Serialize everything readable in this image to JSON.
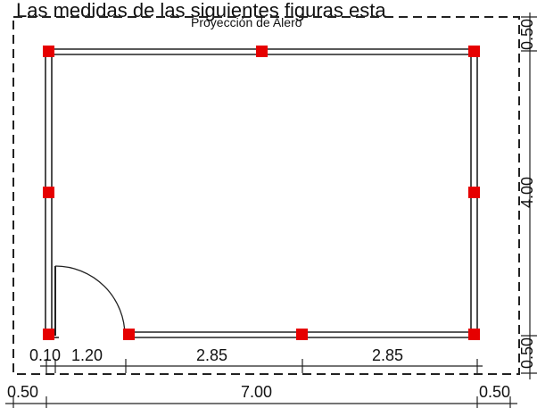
{
  "header_text": "Las medidas de las siguientes figuras esta",
  "roof_label": "Proyección de Alero",
  "dimensions": {
    "bottom_inner": [
      "0.10",
      "1.20",
      "2.85",
      "2.85"
    ],
    "bottom_outer": [
      "0.50",
      "7.00",
      "0.50"
    ],
    "right": [
      "0.50",
      "4.00",
      "0.50"
    ]
  },
  "colors": {
    "column": "#e60000",
    "line": "#222222"
  }
}
